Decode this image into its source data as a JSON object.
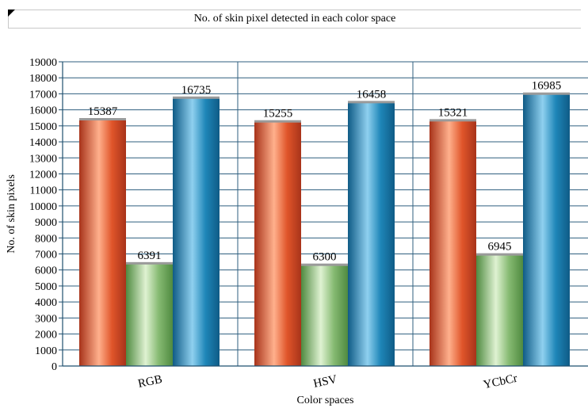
{
  "chart_data": {
    "type": "bar",
    "title": "No. of skin pixel detected in each color space",
    "xlabel": "Color spaces",
    "ylabel": "No. of skin pixels",
    "categories": [
      "RGB",
      "HSV",
      "YCbCr"
    ],
    "ylim": [
      0,
      19000
    ],
    "ytick_step": 1000,
    "grid": true,
    "series": [
      {
        "values": [
          15387,
          15255,
          15321
        ],
        "color": "#e0552a",
        "highlight": "#ffb08c",
        "shade": "#a8331a"
      },
      {
        "values": [
          6391,
          6300,
          6945
        ],
        "color": "#86ba72",
        "highlight": "#dff2d2",
        "shade": "#4f8a40"
      },
      {
        "values": [
          16735,
          16458,
          16985
        ],
        "color": "#1e86b8",
        "highlight": "#8fd0ef",
        "shade": "#0f5b86"
      }
    ],
    "colors": {
      "grid": "#2f5f7f",
      "axis": "#1f4f6f",
      "bar_cap": "#9a9a9a"
    }
  }
}
